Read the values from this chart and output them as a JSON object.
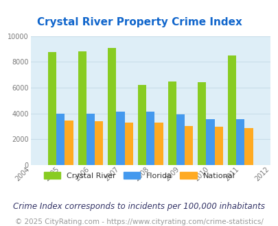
{
  "title": "Crystal River Property Crime Index",
  "years": [
    2005,
    2006,
    2007,
    2008,
    2009,
    2010,
    2011
  ],
  "crystal_river": [
    8750,
    8800,
    9100,
    6200,
    6500,
    6450,
    8500
  ],
  "florida": [
    4000,
    4000,
    4150,
    4150,
    3950,
    3550,
    3550
  ],
  "national": [
    3450,
    3400,
    3300,
    3280,
    3050,
    2980,
    2880
  ],
  "color_crystal": "#88cc22",
  "color_florida": "#4499ee",
  "color_national": "#ffaa22",
  "bg_color": "#ffffff",
  "plot_bg": "#deeef7",
  "ylim": [
    0,
    10000
  ],
  "yticks": [
    0,
    2000,
    4000,
    6000,
    8000,
    10000
  ],
  "xlim_min": 2004,
  "xlim_max": 2012,
  "title_color": "#1166cc",
  "title_fontsize": 11,
  "subtitle": "Crime Index corresponds to incidents per 100,000 inhabitants",
  "footer": "© 2025 CityRating.com - https://www.cityrating.com/crime-statistics/",
  "legend_labels": [
    "Crystal River",
    "Florida",
    "National"
  ],
  "bar_width": 0.28,
  "subtitle_fontsize": 8.5,
  "footer_fontsize": 7.5,
  "grid_color": "#c8dce8"
}
